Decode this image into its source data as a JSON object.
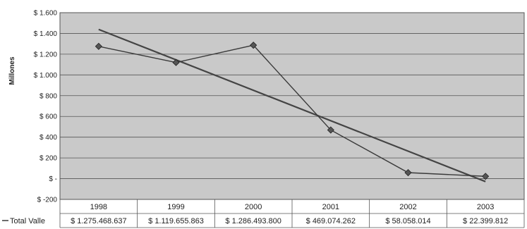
{
  "chart_data": {
    "type": "line",
    "title": "",
    "ylabel": "Millones",
    "xlabel": "",
    "ylim": [
      -200,
      1600
    ],
    "y_step": 200,
    "y_tick_labels": [
      "$ -200",
      "$ -",
      "$ 200",
      "$ 400",
      "$ 600",
      "$ 800",
      "$ 1.000",
      "$ 1.200",
      "$ 1.400",
      "$ 1.600"
    ],
    "categories": [
      "1998",
      "1999",
      "2000",
      "2001",
      "2002",
      "2003"
    ],
    "grid": true,
    "legend_position": "bottom-left (data table)",
    "series": [
      {
        "name": "Total Valle",
        "values": [
          1275.468637,
          1119.655863,
          1286.4938,
          469.074262,
          58.058014,
          22.399812
        ],
        "value_labels": [
          "$ 1.275.468.637",
          "$ 1.119.655.863",
          "$ 1.286.493.800",
          "$ 469.074.262",
          "$ 58.058.014",
          "$ 22.399.812"
        ],
        "marker": "diamond",
        "color": "#3a3a3a"
      }
    ],
    "trendline": {
      "type": "linear",
      "color": "#444444"
    },
    "plot_background": "#c9c9c9"
  }
}
